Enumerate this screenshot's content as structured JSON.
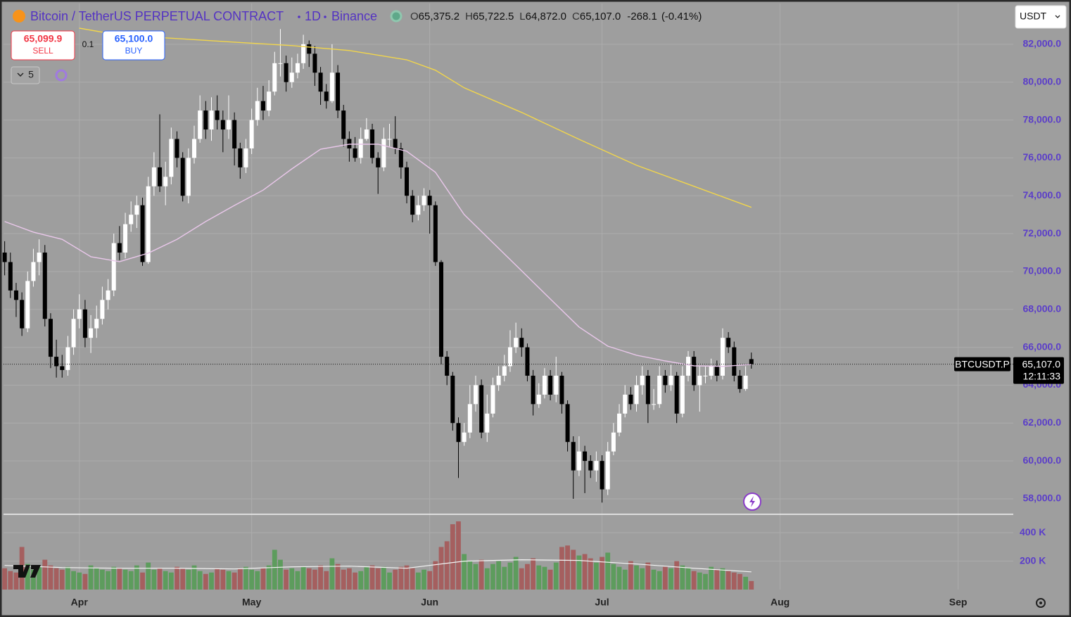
{
  "header": {
    "symbol": "Bitcoin / TetherUS PERPETUAL CONTRACT",
    "interval": "1D",
    "exchange": "Binance",
    "ohlc": [
      {
        "key": "O",
        "value": "65,375.2"
      },
      {
        "key": "H",
        "value": "65,722.5"
      },
      {
        "key": "L",
        "value": "64,872.0"
      },
      {
        "key": "C",
        "value": "65,107.0"
      }
    ],
    "change": "-268.1",
    "change_pct": "(-0.41%)"
  },
  "trade": {
    "sell_price": "65,099.9",
    "sell": "SELL",
    "spread": "0.1",
    "buy_price": "65,100.0",
    "buy": "BUY"
  },
  "indicators_count": "5",
  "currency": "USDT",
  "price_label": {
    "symbol": "BTCUSDT.P",
    "countdown": "12:11:33"
  },
  "chart_data": [
    {
      "type": "candlestick",
      "up_color": "#ffffff",
      "down_color": "#000000",
      "xlim": [
        -0.2,
        175.6
      ],
      "ylim": [
        57220,
        84150
      ],
      "xticks": [
        {
          "value": 13,
          "label": "Apr"
        },
        {
          "value": 43,
          "label": "May"
        },
        {
          "value": 74,
          "label": "Jun"
        },
        {
          "value": 104,
          "label": "Jul"
        },
        {
          "value": 135,
          "label": "Aug"
        },
        {
          "value": 166,
          "label": "Sep"
        }
      ],
      "yticks": [
        {
          "value": 58000,
          "label": "58,000.0"
        },
        {
          "value": 60000,
          "label": "60,000.0"
        },
        {
          "value": 62000,
          "label": "62,000.0"
        },
        {
          "value": 64000,
          "label": "64,000.0"
        },
        {
          "value": 66000,
          "label": "66,000.0"
        },
        {
          "value": 68000,
          "label": "68,000.0"
        },
        {
          "value": 70000,
          "label": "70,000.0"
        },
        {
          "value": 72000,
          "label": "72,000.0"
        },
        {
          "value": 74000,
          "label": "74,000.0"
        },
        {
          "value": 76000,
          "label": "76,000.0"
        },
        {
          "value": 78000,
          "label": "78,000.0"
        },
        {
          "value": 80000,
          "label": "80,000.0"
        },
        {
          "value": 82000,
          "label": "82,000.0"
        }
      ],
      "grid": true,
      "last_price": {
        "value": 65107,
        "label": "65,107.0"
      },
      "open": [
        71000,
        70500,
        69000,
        68500,
        67000,
        69500,
        70500,
        71000,
        67500,
        65500,
        65000,
        64800,
        66000,
        67500,
        68000,
        66500,
        67000,
        67500,
        68500,
        69000,
        71500,
        71000,
        72500,
        73000,
        73500,
        70500,
        74500,
        75500,
        74500,
        75000,
        77000,
        76000,
        74000,
        76000,
        77000,
        78500,
        77500,
        78500,
        78000,
        77500,
        78000,
        76500,
        75500,
        76500,
        78000,
        79000,
        78500,
        79500,
        81000,
        81000,
        80000,
        80500,
        81000,
        82000,
        81500,
        80500,
        79500,
        79000,
        80500,
        78500,
        77000,
        76500,
        76000,
        77000,
        77500,
        76000,
        75500,
        77000,
        77000,
        76500,
        75500,
        74000,
        73000,
        73500,
        74000,
        73500,
        70500,
        65500,
        64500,
        62000,
        61000,
        61500,
        63000,
        64000,
        61500,
        62500,
        64000,
        64500,
        65000,
        66000,
        66500,
        66000,
        64500,
        63000,
        63500,
        64500,
        63500,
        64500,
        63000,
        61000,
        59500,
        60500,
        60000,
        59500,
        60000,
        58500,
        60500,
        61500,
        62500,
        63500,
        63000,
        64000,
        64500,
        63000,
        63000,
        64500,
        64000,
        64500,
        62500,
        64500,
        65500,
        64000,
        64500,
        64500,
        65000,
        64500,
        66500,
        66000,
        64500,
        63800,
        65375.2
      ],
      "high": [
        71600,
        71000,
        69400,
        68900,
        70000,
        71200,
        71700,
        71400,
        67800,
        66400,
        65600,
        66600,
        68000,
        68800,
        68500,
        67700,
        68200,
        69200,
        69600,
        72000,
        72400,
        73100,
        73700,
        74000,
        73900,
        75000,
        76300,
        78300,
        75800,
        77600,
        77400,
        76300,
        76500,
        77700,
        79300,
        79000,
        79200,
        79300,
        78500,
        79300,
        78400,
        76800,
        77000,
        78600,
        79700,
        79800,
        80100,
        81600,
        82800,
        81400,
        81300,
        81500,
        82500,
        82200,
        81900,
        80800,
        79900,
        82000,
        80900,
        78800,
        77400,
        77100,
        77600,
        78100,
        77800,
        76300,
        77600,
        77800,
        78200,
        76800,
        75800,
        74300,
        74000,
        74400,
        74300,
        73700,
        70600,
        65800,
        64700,
        62300,
        62000,
        64000,
        64500,
        64300,
        63500,
        64400,
        65000,
        65600,
        66900,
        67300,
        67000,
        66200,
        64800,
        64100,
        64900,
        64800,
        65500,
        64700,
        63200,
        61300,
        61300,
        60800,
        60300,
        60500,
        60300,
        61000,
        62000,
        63000,
        64000,
        63900,
        64500,
        65000,
        64800,
        63800,
        65000,
        64800,
        65100,
        64700,
        65000,
        65800,
        65800,
        65000,
        65000,
        65400,
        65300,
        67000,
        66800,
        66300,
        64800,
        65000,
        65722.5
      ],
      "low": [
        69800,
        68600,
        67600,
        66600,
        66800,
        69200,
        69800,
        67100,
        64900,
        64400,
        64400,
        64500,
        65600,
        67000,
        66000,
        65700,
        66500,
        67200,
        68000,
        68700,
        70600,
        70700,
        72100,
        72300,
        70300,
        70400,
        74000,
        74200,
        73500,
        74600,
        75500,
        73700,
        73600,
        75700,
        76800,
        77000,
        76900,
        77500,
        76300,
        77000,
        75600,
        74900,
        75200,
        76200,
        77700,
        78000,
        78200,
        79300,
        80300,
        79500,
        79700,
        80200,
        80700,
        80800,
        79800,
        78800,
        78600,
        78900,
        78100,
        76600,
        75800,
        75800,
        75700,
        76900,
        75700,
        74100,
        75300,
        76600,
        76200,
        74900,
        73600,
        72600,
        72700,
        73200,
        72000,
        70300,
        65100,
        64000,
        61600,
        59100,
        60800,
        61200,
        62600,
        61200,
        61000,
        62300,
        63700,
        64200,
        64700,
        65700,
        65500,
        64200,
        62400,
        62800,
        63300,
        63200,
        63100,
        62500,
        60500,
        58000,
        59200,
        58300,
        59100,
        58900,
        57800,
        58200,
        60300,
        61300,
        62300,
        62700,
        62600,
        63500,
        62000,
        62700,
        62800,
        63600,
        63700,
        62000,
        62300,
        64200,
        63700,
        62600,
        64100,
        64300,
        64200,
        64300,
        65700,
        64200,
        63600,
        63700,
        64872
      ],
      "close": [
        70500,
        69000,
        68500,
        67000,
        69500,
        70500,
        71000,
        67500,
        65500,
        65000,
        64800,
        66000,
        67500,
        68000,
        66500,
        67000,
        67500,
        68500,
        69000,
        71500,
        71000,
        72500,
        73000,
        73500,
        70500,
        74500,
        75500,
        74500,
        75000,
        77000,
        76000,
        74000,
        76000,
        77000,
        78500,
        77500,
        78500,
        78000,
        77500,
        78000,
        76500,
        75500,
        76500,
        78000,
        79000,
        78500,
        79500,
        81000,
        81000,
        80000,
        80500,
        81000,
        82000,
        81500,
        80500,
        79500,
        79000,
        80500,
        78500,
        77000,
        76500,
        76000,
        77000,
        77500,
        76000,
        75500,
        77000,
        77000,
        76500,
        75500,
        74000,
        73000,
        73500,
        74000,
        73500,
        70500,
        65500,
        64500,
        62000,
        61000,
        61500,
        63000,
        64000,
        61500,
        62500,
        64000,
        64500,
        65000,
        66000,
        66500,
        66000,
        64500,
        63000,
        63500,
        64500,
        63500,
        64500,
        63000,
        61000,
        59500,
        60500,
        60000,
        59500,
        60000,
        58500,
        60500,
        61500,
        62500,
        63500,
        63000,
        64000,
        64500,
        63000,
        63000,
        64500,
        64000,
        64500,
        62500,
        64500,
        65500,
        64000,
        64500,
        64500,
        65000,
        64500,
        66500,
        66000,
        64500,
        63800,
        64500,
        65107
      ],
      "overlays": [
        {
          "color": "#e9c7ea",
          "x": [
            0,
            5,
            10,
            15,
            20,
            25,
            30,
            35,
            40,
            45,
            50,
            55,
            60,
            65,
            70,
            75,
            80,
            85,
            90,
            95,
            100,
            105,
            110,
            115,
            120,
            125,
            130
          ],
          "values": [
            72640,
            72080,
            71700,
            70780,
            70520,
            70970,
            71700,
            72640,
            73490,
            74300,
            75420,
            76460,
            76720,
            76720,
            76350,
            75240,
            73010,
            71520,
            70040,
            68550,
            67070,
            66060,
            65580,
            65280,
            65020,
            64990,
            65100
          ]
        },
        {
          "color": "#f2d64b",
          "x": [
            13,
            20,
            30,
            40,
            50,
            60,
            70,
            75,
            80,
            90,
            100,
            110,
            120,
            130
          ],
          "values": [
            82850,
            82480,
            82300,
            82110,
            81930,
            81670,
            81180,
            80630,
            79700,
            78400,
            76980,
            75610,
            74500,
            73390
          ]
        }
      ]
    },
    {
      "type": "bar",
      "up_color": "#5d9c5d",
      "down_color": "#a55f5f",
      "ylim": [
        0,
        525
      ],
      "yticks": [
        {
          "value": 200,
          "label": "200 K"
        },
        {
          "value": 400,
          "label": "400 K"
        }
      ],
      "values": [
        150,
        130,
        120,
        300,
        180,
        140,
        160,
        210,
        170,
        150,
        140,
        160,
        130,
        120,
        110,
        170,
        150,
        140,
        130,
        160,
        150,
        140,
        130,
        170,
        120,
        190,
        140,
        150,
        130,
        120,
        160,
        150,
        140,
        170,
        130,
        110,
        120,
        150,
        140,
        130,
        120,
        150,
        160,
        140,
        130,
        150,
        170,
        280,
        210,
        140,
        150,
        130,
        160,
        150,
        140,
        170,
        130,
        220,
        180,
        140,
        150,
        120,
        130,
        160,
        170,
        150,
        160,
        120,
        140,
        160,
        170,
        150,
        120,
        140,
        130,
        200,
        300,
        340,
        460,
        480,
        250,
        200,
        180,
        210,
        150,
        180,
        200,
        160,
        190,
        230,
        150,
        180,
        220,
        170,
        160,
        140,
        190,
        300,
        310,
        280,
        240,
        250,
        220,
        190,
        230,
        260,
        180,
        160,
        140,
        200,
        170,
        150,
        190,
        140,
        130,
        160,
        150,
        200,
        170,
        150,
        130,
        120,
        110,
        160,
        140,
        150,
        130,
        120,
        110,
        90,
        60
      ],
      "overlays": [
        {
          "color": "#f4f4f4",
          "x": [
            0,
            10,
            20,
            30,
            40,
            50,
            60,
            70,
            80,
            90,
            100,
            110,
            120,
            130
          ],
          "values": [
            170,
            155,
            150,
            150,
            145,
            160,
            165,
            150,
            200,
            210,
            205,
            180,
            150,
            125
          ]
        }
      ]
    }
  ]
}
